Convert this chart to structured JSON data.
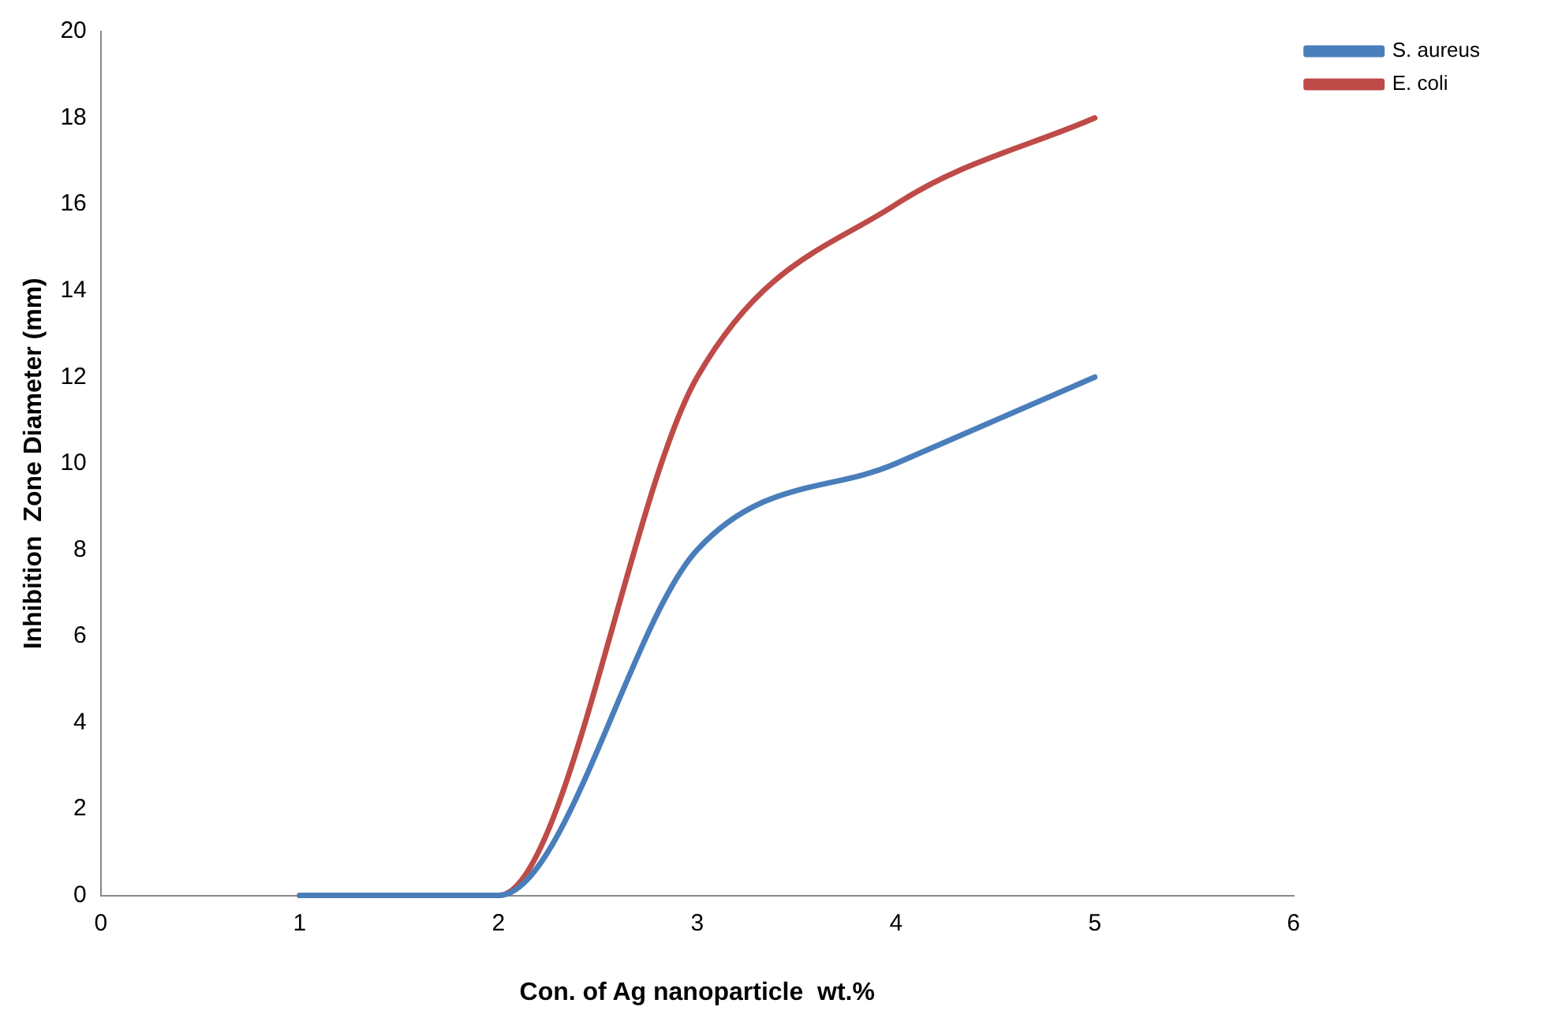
{
  "chart_data": {
    "type": "line",
    "xlabel": "Con. of Ag nanoparticle  wt.%",
    "ylabel": "Inhibition  Zone Diameter (mm)",
    "x": [
      1,
      2,
      3,
      4,
      5
    ],
    "series": [
      {
        "name": "S. aureus",
        "color": "#4a7ebb",
        "values": [
          0,
          0,
          8,
          10,
          12
        ]
      },
      {
        "name": "E. coli",
        "color": "#be4b48",
        "values": [
          0,
          0,
          12,
          16,
          18
        ]
      }
    ],
    "xlim": [
      0,
      6
    ],
    "xticks": [
      0,
      1,
      2,
      3,
      4,
      5,
      6
    ],
    "ylim": [
      0,
      20
    ],
    "yticks": [
      0,
      2,
      4,
      6,
      8,
      10,
      12,
      14,
      16,
      18,
      20
    ],
    "grid": false,
    "legend": "top right",
    "marker": "none",
    "line_style": "solid"
  }
}
